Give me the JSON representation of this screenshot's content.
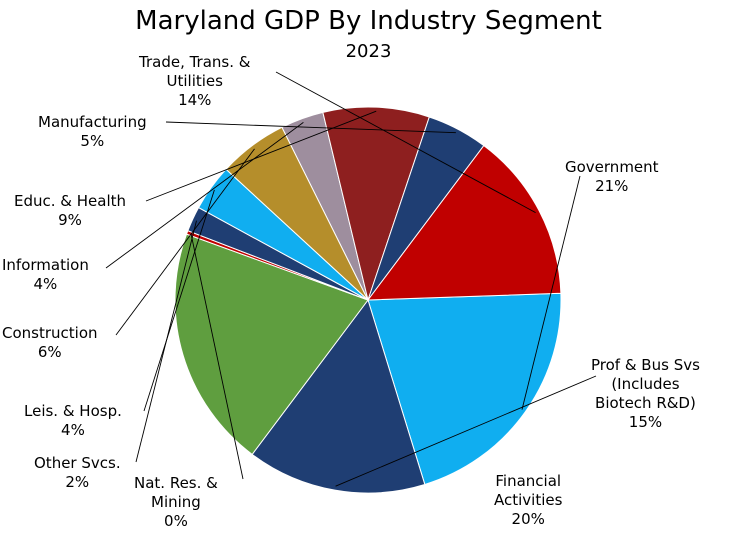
{
  "chart_data": {
    "type": "pie",
    "title": "Maryland GDP By Industry Segment",
    "subtitle": "2023",
    "slices": [
      {
        "label": "Government",
        "display_value": "21%",
        "value": 20.8,
        "color": "#10aef0"
      },
      {
        "label": "Prof & Bus Svs (Includes Biotech R&D)",
        "label_lines": [
          "Prof & Bus Svs",
          "(Includes",
          "Biotech R&D)"
        ],
        "display_value": "15%",
        "value": 15.0,
        "color": "#1f3e73"
      },
      {
        "label": "Financial Activities",
        "label_lines": [
          "Financial",
          "Activities"
        ],
        "display_value": "20%",
        "value": 20.3,
        "color": "#5f9e3f"
      },
      {
        "label": "Nat. Res. & Mining",
        "label_lines": [
          "Nat. Res. &",
          "Mining"
        ],
        "display_value": "0%",
        "value": 0.3,
        "color": "#c00000"
      },
      {
        "label": "Other Svcs.",
        "display_value": "2%",
        "value": 2.1,
        "color": "#1f3e73"
      },
      {
        "label": "Leis. & Hosp.",
        "display_value": "4%",
        "value": 3.9,
        "color": "#10aef0"
      },
      {
        "label": "Construction",
        "display_value": "6%",
        "value": 5.8,
        "color": "#b58e2b"
      },
      {
        "label": "Information",
        "display_value": "4%",
        "value": 3.6,
        "color": "#9e8e9e"
      },
      {
        "label": "Educ. & Health",
        "display_value": "9%",
        "value": 8.9,
        "color": "#8e1f1f"
      },
      {
        "label": "Manufacturing",
        "display_value": "5%",
        "value": 5.1,
        "color": "#1f3e73"
      },
      {
        "label": "Trade, Trans. & Utilities",
        "label_lines": [
          "Trade, Trans. &",
          "Utilities"
        ],
        "display_value": "14%",
        "value": 14.2,
        "color": "#c00000"
      }
    ]
  }
}
